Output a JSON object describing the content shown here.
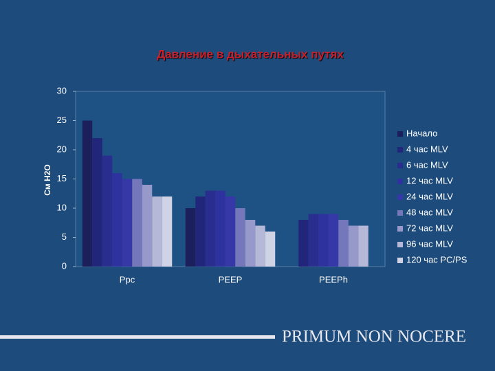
{
  "chart_data": {
    "type": "bar",
    "title": "Давление в дыхательных путях",
    "y_label": "См Н2О",
    "categories": [
      "Ppc",
      "PEEP",
      "PEEPh"
    ],
    "series": [
      {
        "name": "Начало",
        "color": "#1b1f5c",
        "values": [
          25,
          10,
          null
        ]
      },
      {
        "name": "4 час MLV",
        "color": "#22267a",
        "values": [
          22,
          12,
          8
        ]
      },
      {
        "name": "6 час MLV",
        "color": "#292d8e",
        "values": [
          19,
          13,
          9
        ]
      },
      {
        "name": "12 час MLV",
        "color": "#2e329e",
        "values": [
          16,
          13,
          9
        ]
      },
      {
        "name": "24 час MLV",
        "color": "#3538a6",
        "values": [
          15,
          12,
          9
        ]
      },
      {
        "name": "48 час MLV",
        "color": "#7478bb",
        "values": [
          15,
          10,
          8
        ]
      },
      {
        "name": "72 час MLV",
        "color": "#9799cb",
        "values": [
          14,
          8,
          7
        ]
      },
      {
        "name": "96 час MLV",
        "color": "#b6b8d8",
        "values": [
          12,
          7,
          7
        ]
      },
      {
        "name": "120 час PC/PS",
        "color": "#d0d2e6",
        "values": [
          12,
          6,
          null
        ]
      }
    ],
    "ylim": [
      0,
      30
    ],
    "yticks": [
      0,
      5,
      10,
      15,
      20,
      25,
      30
    ],
    "grid": false,
    "legend": "right"
  },
  "footer": "PRIMUM NON NOCERE"
}
